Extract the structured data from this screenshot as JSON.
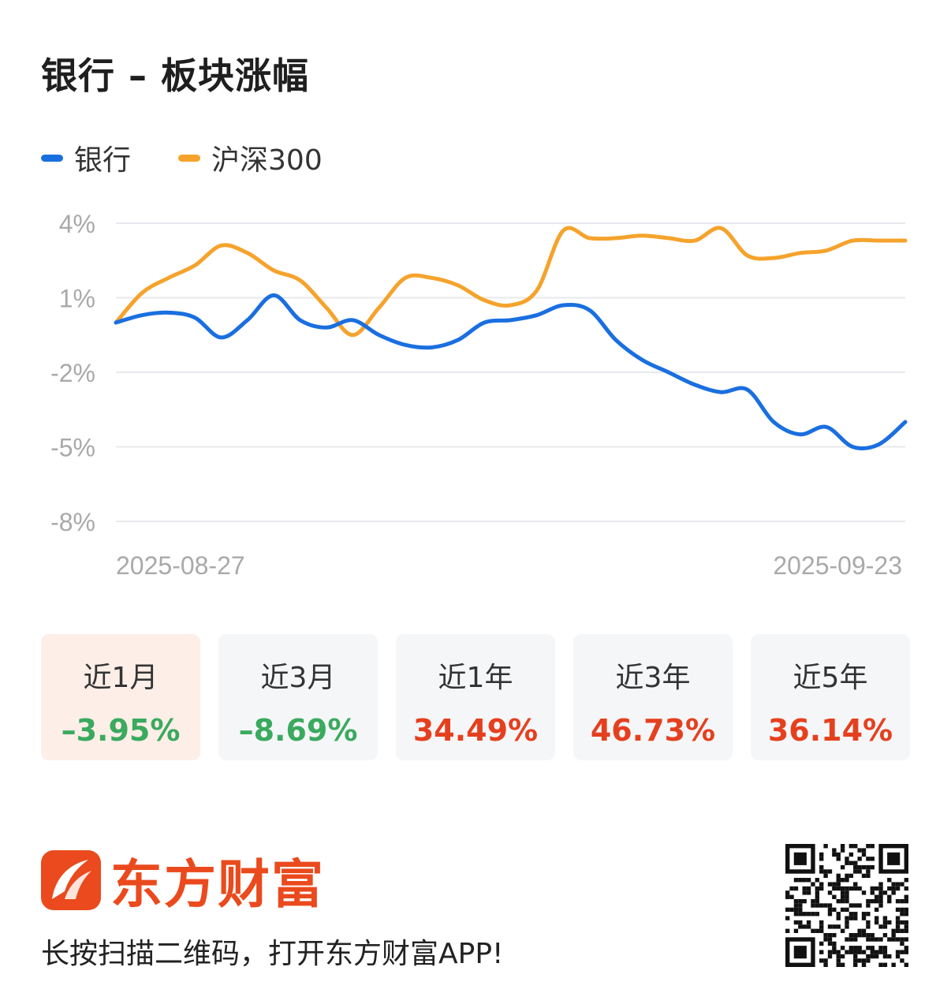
{
  "title": "银行 – 板块涨幅",
  "legend": [
    {
      "name": "银行",
      "color": "#1a6fe0"
    },
    {
      "name": "沪深300",
      "color": "#f5a32c"
    }
  ],
  "chart_data": {
    "type": "line",
    "x_start_label": "2025-08-27",
    "x_end_label": "2025-09-23",
    "y_ticks": [
      "4%",
      "1%",
      "-2%",
      "-5%",
      "-8%"
    ],
    "y_tick_values": [
      4,
      1,
      -2,
      -5,
      -8
    ],
    "ylim": [
      -8,
      4
    ],
    "grid": true,
    "legend_position": "top-left",
    "series": [
      {
        "name": "银行",
        "color": "#1a6fe0",
        "values": [
          0.0,
          0.3,
          0.4,
          0.2,
          -0.6,
          0.1,
          1.1,
          0.1,
          -0.2,
          0.1,
          -0.5,
          -0.9,
          -1.0,
          -0.7,
          0.0,
          0.1,
          0.3,
          0.7,
          0.5,
          -0.7,
          -1.5,
          -2.0,
          -2.5,
          -2.8,
          -2.7,
          -4.0,
          -4.5,
          -4.2,
          -5.0,
          -4.9,
          -4.0
        ]
      },
      {
        "name": "沪深300",
        "color": "#f5a32c",
        "values": [
          0.0,
          1.2,
          1.8,
          2.3,
          3.1,
          2.8,
          2.1,
          1.7,
          0.6,
          -0.5,
          0.6,
          1.8,
          1.8,
          1.5,
          0.9,
          0.7,
          1.3,
          3.7,
          3.4,
          3.4,
          3.5,
          3.4,
          3.3,
          3.8,
          2.7,
          2.6,
          2.8,
          2.9,
          3.3,
          3.3,
          3.3
        ]
      }
    ]
  },
  "periods": [
    {
      "label": "近1月",
      "value": "–3.95%",
      "color": "#3aaa5e",
      "active": true
    },
    {
      "label": "近3月",
      "value": "–8.69%",
      "color": "#3aaa5e",
      "active": false
    },
    {
      "label": "近1年",
      "value": "34.49%",
      "color": "#e5401e",
      "active": false
    },
    {
      "label": "近3年",
      "value": "46.73%",
      "color": "#e5401e",
      "active": false
    },
    {
      "label": "近5年",
      "value": "36.14%",
      "color": "#e5401e",
      "active": false
    }
  ],
  "brand": {
    "name": "东方财富",
    "color": "#ea4a1d"
  },
  "footer": {
    "text": "长按扫描二维码，打开东方财富APP!"
  }
}
